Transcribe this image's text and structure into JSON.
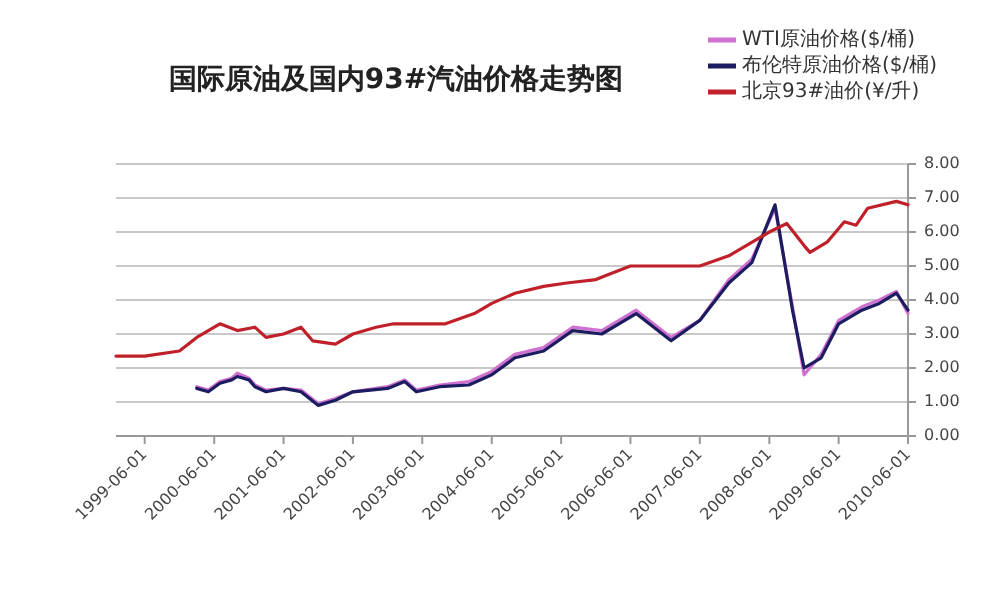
{
  "chart_data": {
    "type": "line",
    "title": "国际原油及国内93#汽油价格走势图",
    "legend": "top right",
    "grid": "y",
    "line_style": "solid",
    "marker": "none",
    "xlim": [
      "1999-01-01",
      "2010-06-01"
    ],
    "xticks": [
      "1999-06-01",
      "2000-06-01",
      "2001-06-01",
      "2002-06-01",
      "2003-06-01",
      "2004-06-01",
      "2005-06-01",
      "2006-06-01",
      "2007-06-01",
      "2008-06-01",
      "2009-06-01",
      "2010-06-01"
    ],
    "ylim": [
      0,
      8
    ],
    "yticks": [
      {
        "value": 0,
        "label": "0.00"
      },
      {
        "value": 1,
        "label": "1.00"
      },
      {
        "value": 2,
        "label": "2.00"
      },
      {
        "value": 3,
        "label": "3.00"
      },
      {
        "value": 4,
        "label": "4.00"
      },
      {
        "value": 5,
        "label": "5.00"
      },
      {
        "value": 6,
        "label": "6.00"
      },
      {
        "value": 7,
        "label": "7.00"
      },
      {
        "value": 8,
        "label": "8.00"
      }
    ],
    "series": [
      {
        "name": "WTI原油价格($/桶)",
        "color": "#d070d0",
        "x": [
          "2000-03",
          "2000-05",
          "2000-07",
          "2000-09",
          "2000-10",
          "2000-12",
          "2001-01",
          "2001-03",
          "2001-06",
          "2001-09",
          "2001-12",
          "2002-03",
          "2002-06",
          "2002-12",
          "2003-03",
          "2003-05",
          "2003-09",
          "2004-02",
          "2004-06",
          "2004-10",
          "2005-03",
          "2005-08",
          "2006-01",
          "2006-07",
          "2007-01",
          "2007-06",
          "2007-11",
          "2008-03",
          "2008-07",
          "2008-10",
          "2008-12",
          "2009-03",
          "2009-06",
          "2009-10",
          "2010-01",
          "2010-04",
          "2010-06"
        ],
        "values": [
          1.45,
          1.35,
          1.6,
          1.7,
          1.85,
          1.7,
          1.5,
          1.35,
          1.4,
          1.35,
          0.95,
          1.1,
          1.3,
          1.45,
          1.65,
          1.35,
          1.5,
          1.6,
          1.9,
          2.4,
          2.6,
          3.2,
          3.1,
          3.7,
          2.9,
          3.4,
          4.6,
          5.2,
          6.7,
          3.8,
          1.8,
          2.4,
          3.4,
          3.8,
          4.0,
          4.25,
          3.6
        ]
      },
      {
        "name": "布伦特原油价格($/桶)",
        "color": "#1c1c60",
        "x": [
          "2000-03",
          "2000-05",
          "2000-07",
          "2000-09",
          "2000-10",
          "2000-12",
          "2001-01",
          "2001-03",
          "2001-06",
          "2001-09",
          "2001-12",
          "2002-03",
          "2002-06",
          "2002-12",
          "2003-03",
          "2003-05",
          "2003-09",
          "2004-02",
          "2004-06",
          "2004-10",
          "2005-03",
          "2005-08",
          "2006-01",
          "2006-07",
          "2007-01",
          "2007-06",
          "2007-11",
          "2008-03",
          "2008-07",
          "2008-10",
          "2008-12",
          "2009-03",
          "2009-06",
          "2009-10",
          "2010-01",
          "2010-04",
          "2010-06"
        ],
        "values": [
          1.4,
          1.3,
          1.55,
          1.65,
          1.75,
          1.65,
          1.45,
          1.3,
          1.4,
          1.3,
          0.9,
          1.05,
          1.3,
          1.4,
          1.6,
          1.3,
          1.45,
          1.5,
          1.8,
          2.3,
          2.5,
          3.1,
          3.0,
          3.6,
          2.8,
          3.4,
          4.5,
          5.1,
          6.8,
          3.7,
          2.0,
          2.3,
          3.3,
          3.7,
          3.9,
          4.2,
          3.7
        ]
      },
      {
        "name": "北京93#油价(¥/升)",
        "color": "#c0202a",
        "x": [
          "1999-01",
          "1999-06",
          "1999-12",
          "2000-03",
          "2000-07",
          "2000-10",
          "2001-01",
          "2001-03",
          "2001-06",
          "2001-09",
          "2001-11",
          "2002-03",
          "2002-06",
          "2002-10",
          "2003-01",
          "2003-06",
          "2003-10",
          "2004-03",
          "2004-06",
          "2004-10",
          "2005-03",
          "2005-07",
          "2005-12",
          "2006-03",
          "2006-06",
          "2007-01",
          "2007-06",
          "2007-11",
          "2008-06",
          "2008-09",
          "2008-12",
          "2009-01",
          "2009-04",
          "2009-07",
          "2009-09",
          "2009-11",
          "2010-04",
          "2010-06"
        ],
        "values": [
          2.35,
          2.35,
          2.5,
          2.9,
          3.3,
          3.1,
          3.2,
          2.9,
          3.0,
          3.2,
          2.8,
          2.7,
          3.0,
          3.2,
          3.3,
          3.3,
          3.3,
          3.6,
          3.9,
          4.2,
          4.4,
          4.5,
          4.6,
          4.8,
          5.0,
          5.0,
          5.0,
          5.3,
          6.0,
          6.25,
          5.6,
          5.4,
          5.7,
          6.3,
          6.2,
          6.7,
          6.9,
          6.8
        ]
      }
    ]
  }
}
